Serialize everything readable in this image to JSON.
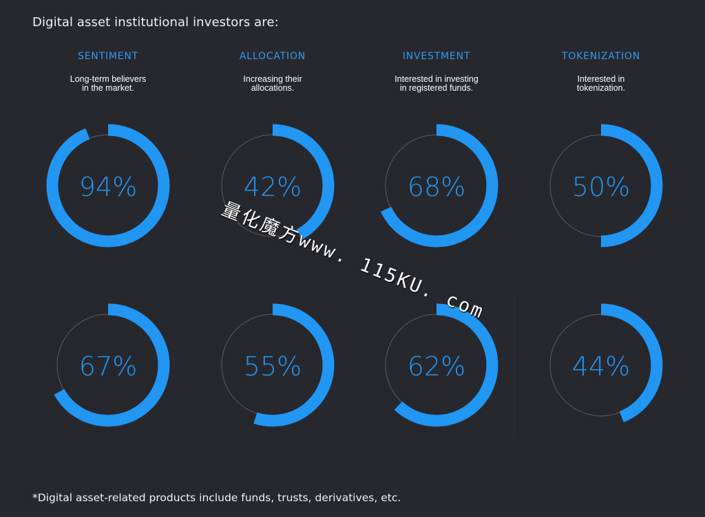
{
  "heading": "Digital asset institutional investors are:",
  "footnote": "*Digital asset-related products include funds, trusts, derivatives, etc.",
  "watermark": "量化魔方www. 115KU. com",
  "colors": {
    "background": "#27282e",
    "accent": "#2196f3",
    "track": "#5c5e64",
    "label": "#2f9bf0"
  },
  "columns": [
    {
      "title": "SENTIMENT",
      "subtitle": [
        "Long-term believers",
        "in the market."
      ]
    },
    {
      "title": "ALLOCATION",
      "subtitle": [
        "Increasing their",
        "allocations."
      ]
    },
    {
      "title": "INVESTMENT",
      "subtitle": [
        "Interested in investing",
        "in registered funds."
      ]
    },
    {
      "title": "TOKENIZATION",
      "subtitle": [
        "Interested in",
        "tokenization."
      ]
    }
  ],
  "chart_data": {
    "type": "donut",
    "categories": [
      "SENTIMENT",
      "ALLOCATION",
      "INVESTMENT",
      "TOKENIZATION"
    ],
    "series": [
      {
        "values": [
          94,
          42,
          68,
          50
        ]
      },
      {
        "values": [
          67,
          55,
          62,
          44
        ]
      }
    ],
    "value_labels": [
      [
        "94%",
        "42%",
        "68%",
        "50%"
      ],
      [
        "67%",
        "55%",
        "62%",
        "44%"
      ]
    ]
  }
}
